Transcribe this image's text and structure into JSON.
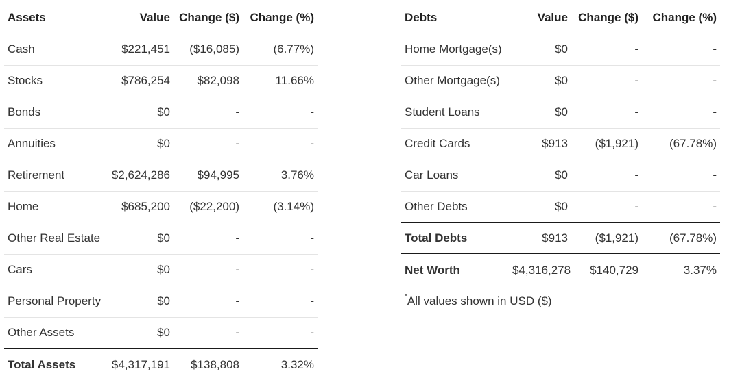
{
  "assets": {
    "headers": [
      "Assets",
      "Value",
      "Change ($)",
      "Change (%)"
    ],
    "rows": [
      {
        "name": "Cash",
        "value": "$221,451",
        "change": "($16,085)",
        "pct": "(6.77%)"
      },
      {
        "name": "Stocks",
        "value": "$786,254",
        "change": "$82,098",
        "pct": "11.66%"
      },
      {
        "name": "Bonds",
        "value": "$0",
        "change": "-",
        "pct": "-"
      },
      {
        "name": "Annuities",
        "value": "$0",
        "change": "-",
        "pct": "-"
      },
      {
        "name": "Retirement",
        "value": "$2,624,286",
        "change": "$94,995",
        "pct": "3.76%"
      },
      {
        "name": "Home",
        "value": "$685,200",
        "change": "($22,200)",
        "pct": "(3.14%)"
      },
      {
        "name": "Other Real Estate",
        "value": "$0",
        "change": "-",
        "pct": "-"
      },
      {
        "name": "Cars",
        "value": "$0",
        "change": "-",
        "pct": "-"
      },
      {
        "name": "Personal Property",
        "value": "$0",
        "change": "-",
        "pct": "-"
      },
      {
        "name": "Other Assets",
        "value": "$0",
        "change": "-",
        "pct": "-"
      }
    ],
    "total": {
      "name": "Total Assets",
      "value": "$4,317,191",
      "change": "$138,808",
      "pct": "3.32%"
    }
  },
  "debts": {
    "headers": [
      "Debts",
      "Value",
      "Change ($)",
      "Change (%)"
    ],
    "rows": [
      {
        "name": "Home Mortgage(s)",
        "value": "$0",
        "change": "-",
        "pct": "-"
      },
      {
        "name": "Other Mortgage(s)",
        "value": "$0",
        "change": "-",
        "pct": "-"
      },
      {
        "name": "Student Loans",
        "value": "$0",
        "change": "-",
        "pct": "-"
      },
      {
        "name": "Credit Cards",
        "value": "$913",
        "change": "($1,921)",
        "pct": "(67.78%)"
      },
      {
        "name": "Car Loans",
        "value": "$0",
        "change": "-",
        "pct": "-"
      },
      {
        "name": "Other Debts",
        "value": "$0",
        "change": "-",
        "pct": "-"
      }
    ],
    "total": {
      "name": "Total Debts",
      "value": "$913",
      "change": "($1,921)",
      "pct": "(67.78%)"
    }
  },
  "net_worth": {
    "name": "Net Worth",
    "value": "$4,316,278",
    "change": "$140,729",
    "pct": "3.37%"
  },
  "footnote": {
    "marker": "*",
    "text": "All values shown in USD ($)"
  }
}
